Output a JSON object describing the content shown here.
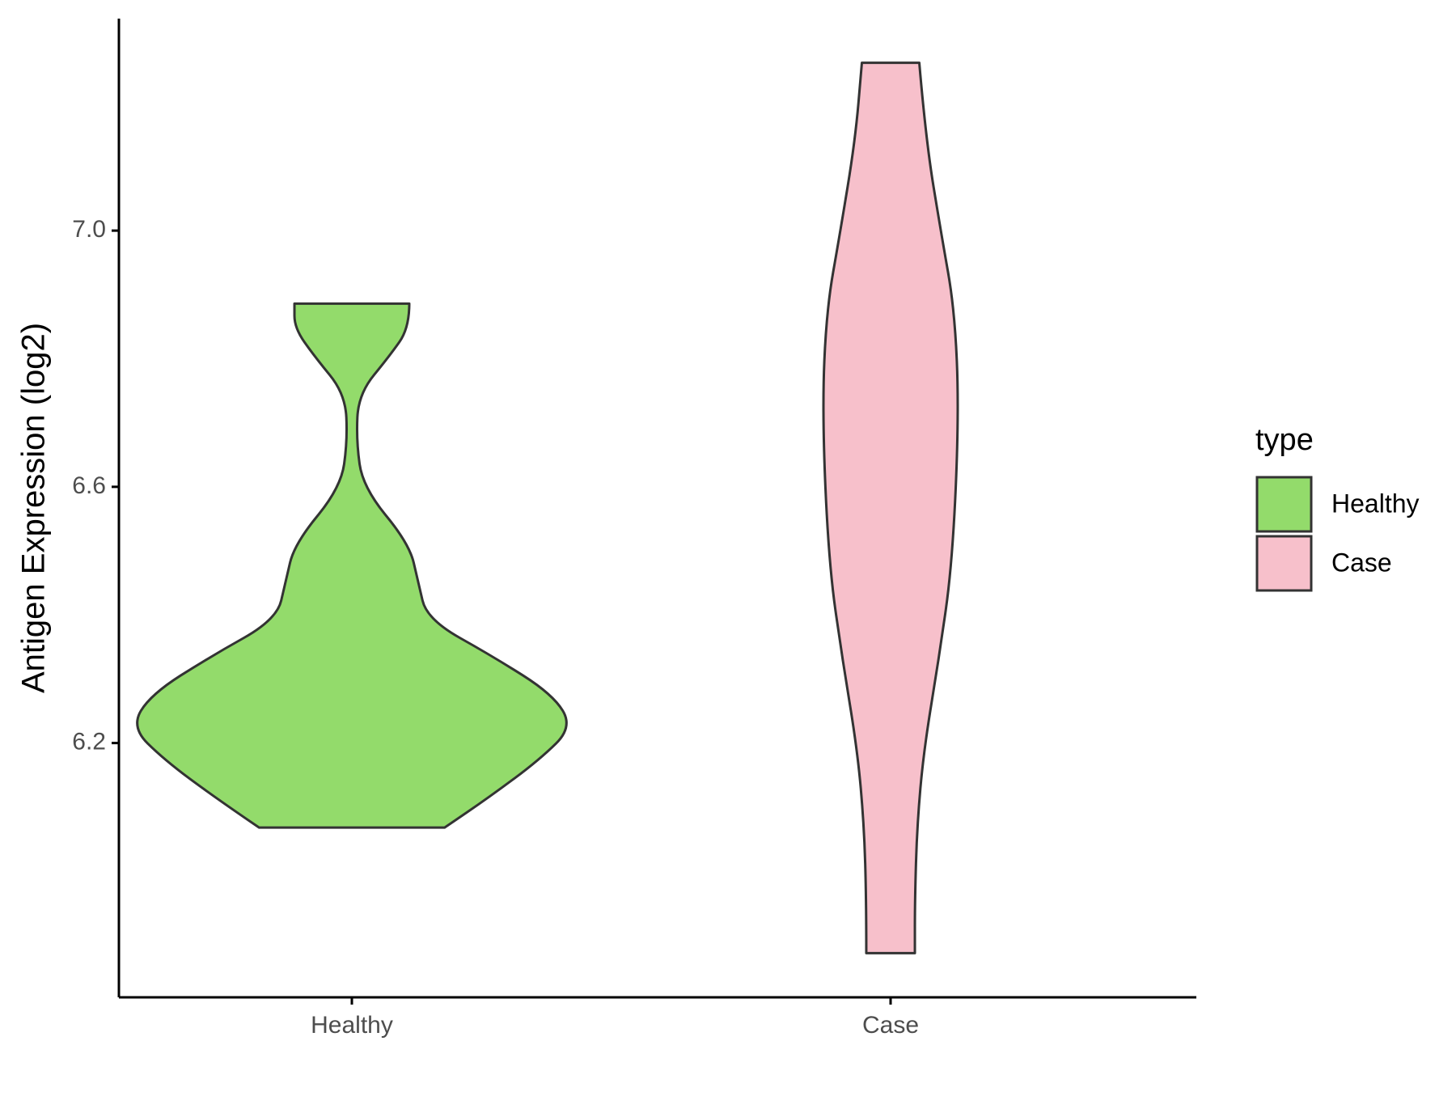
{
  "chart_data": {
    "type": "violin",
    "y_label": "Antigen Expression (log2)",
    "ylim": [
      5.803,
      7.331
    ],
    "yticks": [
      {
        "value": 6.2,
        "label": "6.2"
      },
      {
        "value": 6.6,
        "label": "6.6"
      },
      {
        "value": 7.0,
        "label": "7.0"
      }
    ],
    "categories": [
      "Healthy",
      "Case"
    ],
    "legend_title": "type",
    "legend_position": "right",
    "series": [
      {
        "name": "Healthy",
        "color": "#93db6b",
        "y": [
          6.886,
          6.848,
          6.804,
          6.745,
          6.672,
          6.599,
          6.511,
          6.452,
          6.393,
          6.335,
          6.276,
          6.225,
          6.174,
          6.115,
          6.068
        ],
        "width": [
          0.26,
          0.26,
          0.17,
          0.03,
          0.02,
          0.05,
          0.26,
          0.3,
          0.34,
          0.64,
          0.91,
          1,
          0.85,
          0.62,
          0.42
        ]
      },
      {
        "name": "Case",
        "color": "#f7c0cb",
        "y": [
          7.262,
          7.141,
          6.994,
          6.877,
          6.716,
          6.481,
          6.335,
          6.188,
          6.071,
          5.954,
          5.872
        ],
        "width": [
          0.13,
          0.16,
          0.23,
          0.29,
          0.31,
          0.28,
          0.22,
          0.15,
          0.12,
          0.11,
          0.11
        ]
      }
    ]
  }
}
